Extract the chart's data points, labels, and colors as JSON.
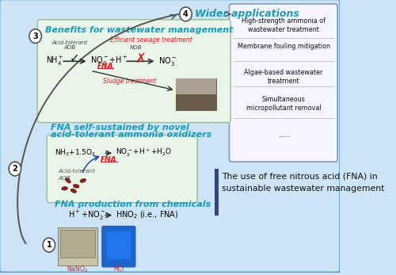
{
  "bg_color": "#cce4f5",
  "outer_border_color": "#5599cc",
  "wider_apps_items": [
    "High-strength ammonia of\nwastewater treatment",
    "Membrane fouling mitigation",
    "Algae-based wastewater\ntreatment",
    "Simultaneous\nmicropollutant removal",
    "......"
  ],
  "box3_bg": "#eaf5ea",
  "box3_border": "#99bb99",
  "box2_bg": "#eaf5ea",
  "box2_border": "#99bb99",
  "fna_red": "#cc2222",
  "cyan_title": "#1a9bba",
  "dark_text": "#222222",
  "circle_bg": "#ffffff",
  "circle_border": "#555555",
  "right_box_bg": "#f5f5ff",
  "right_box_border": "#8899bb",
  "fna_bar_color": "#334488",
  "arrow_dark": "#333333",
  "arrow_curve_color": "#444444"
}
